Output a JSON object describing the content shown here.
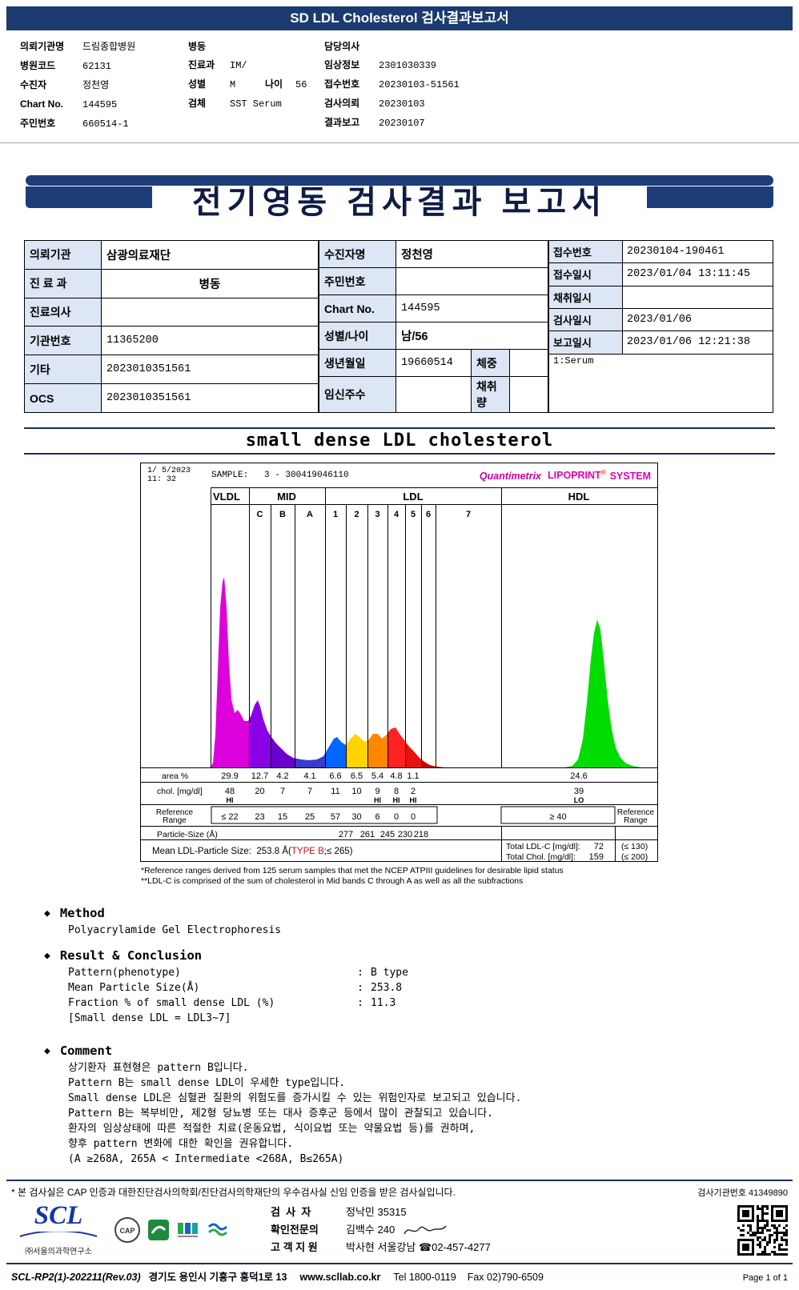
{
  "top": {
    "title": "SD LDL Cholesterol 검사결과보고서"
  },
  "patient": {
    "col1": [
      {
        "label": "의뢰기관명",
        "value": "드림종합병원"
      },
      {
        "label": "병원코드",
        "value": "62131"
      },
      {
        "label": "수진자",
        "value": "정천영"
      },
      {
        "label": "Chart No.",
        "value": "144595"
      },
      {
        "label": "주민번호",
        "value": "660514-1"
      }
    ],
    "col2": [
      {
        "label": "병동",
        "value": ""
      },
      {
        "label": "진료과",
        "value": "IM/"
      },
      {
        "label": "성별",
        "value": "M",
        "label2": "나이",
        "value2": "56"
      },
      {
        "label": "검체",
        "value": "SST Serum"
      }
    ],
    "col3": [
      {
        "label": "담당의사",
        "value": ""
      },
      {
        "label": "임상정보",
        "value": "2301030339"
      },
      {
        "label": "접수번호",
        "value": "20230103-51561"
      },
      {
        "label": "검사의뢰",
        "value": "20230103"
      },
      {
        "label": "결과보고",
        "value": "20230107"
      }
    ]
  },
  "banner": {
    "title": "전기영동 검사결과 보고서"
  },
  "info": {
    "rows_left": [
      {
        "label": "의뢰기관",
        "value": "삼광의료재단"
      },
      {
        "label": "진 료 과",
        "value": "병동"
      },
      {
        "label": "진료의사",
        "value": ""
      },
      {
        "label": "기관번호",
        "value": "11365200"
      },
      {
        "label": "기타",
        "value": "2023010351561"
      },
      {
        "label": "OCS",
        "value": "2023010351561"
      }
    ],
    "rows_mid": [
      {
        "label": "수진자명",
        "value": "정천영"
      },
      {
        "label": "주민번호",
        "value": ""
      },
      {
        "label": "Chart No.",
        "value": "144595"
      },
      {
        "label": "성별/나이",
        "value": "남/56"
      },
      {
        "label": "생년월일",
        "value": "19660514",
        "label2": "체중",
        "value2": ""
      },
      {
        "label": "임신주수",
        "value": "",
        "label2": "채취량",
        "value2": ""
      }
    ],
    "rows_right": [
      {
        "label": "접수번호",
        "value": "20230104-190461"
      },
      {
        "label": "접수일시",
        "value": "2023/01/04 13:11:45"
      },
      {
        "label": "채취일시",
        "value": ""
      },
      {
        "label": "검사일시",
        "value": "2023/01/06"
      },
      {
        "label": "보고일시",
        "value": "2023/01/06 12:21:38"
      }
    ],
    "serum_note": "1:Serum"
  },
  "section_title": "small dense LDL cholesterol",
  "chart_data": {
    "type": "area",
    "date": "1/ 5/2023",
    "time": "11: 32",
    "sample": "SAMPLE:   3 - 300419046110",
    "brand1": "Quantimetrix",
    "brand2": "LIPOPRINT",
    "brand_reg": "®",
    "brand3": "SYSTEM",
    "groups": [
      "VLDL",
      "MID",
      "LDL",
      "HDL"
    ],
    "bands": [
      "VLDL",
      "C",
      "B",
      "A",
      "1",
      "2",
      "3",
      "4",
      "5",
      "6",
      "7",
      "HDL"
    ],
    "band_colors": [
      "#dd00dd",
      "#8a00e6",
      "#6a00cc",
      "#3a3acc",
      "#0066ff",
      "#ffd400",
      "#ff8800",
      "#ff2222",
      "#e81010",
      "#cc0000",
      "#aa0000",
      "#00dd00"
    ],
    "area_pct": [
      29.9,
      12.7,
      4.2,
      4.1,
      6.6,
      6.5,
      5.4,
      4.8,
      1.1
    ],
    "area_pct_hdl": 24.6,
    "chol_mg_dl": [
      48,
      20,
      7,
      7,
      11,
      10,
      9,
      8,
      2
    ],
    "chol_flags": [
      "HI",
      "",
      "",
      "",
      "",
      "",
      "HI",
      "HI",
      "HI"
    ],
    "chol_hdl": 39,
    "chol_hdl_flag": "LO",
    "reference_range": [
      "≤ 22",
      "23",
      "15",
      "25",
      "57",
      "30",
      "6",
      "0",
      "0"
    ],
    "reference_hdl": "≥ 40",
    "particle_sizes": [
      277,
      261,
      245,
      230,
      218
    ],
    "row_labels": {
      "area": "area %",
      "chol": "chol. [mg/dl]",
      "reference": "Reference Range",
      "particle": "Particle-Size (Å)"
    },
    "mean_particle": {
      "label": "Mean LDL-Particle Size:",
      "size": "253.8 Å(",
      "type": "TYPE B",
      "suffix": ";≤ 265)"
    },
    "totals": [
      {
        "label": "Total LDL-C [mg/dl]:",
        "value": "72",
        "ref": "(≤ 130)"
      },
      {
        "label": "Total Chol. [mg/dl]:",
        "value": "159",
        "ref": "(≤ 200)"
      }
    ],
    "profile": [
      [
        87,
        0
      ],
      [
        90,
        6
      ],
      [
        93,
        40
      ],
      [
        96,
        120
      ],
      [
        99,
        200
      ],
      [
        102,
        232
      ],
      [
        104,
        238
      ],
      [
        107,
        200
      ],
      [
        110,
        130
      ],
      [
        113,
        85
      ],
      [
        117,
        68
      ],
      [
        121,
        72
      ],
      [
        125,
        66
      ],
      [
        129,
        58
      ],
      [
        134,
        58
      ],
      [
        138,
        66
      ],
      [
        142,
        78
      ],
      [
        146,
        84
      ],
      [
        149,
        76
      ],
      [
        153,
        60
      ],
      [
        158,
        46
      ],
      [
        163,
        38
      ],
      [
        169,
        30
      ],
      [
        175,
        24
      ],
      [
        182,
        17
      ],
      [
        190,
        12
      ],
      [
        200,
        10
      ],
      [
        210,
        9
      ],
      [
        220,
        10
      ],
      [
        228,
        14
      ],
      [
        235,
        26
      ],
      [
        241,
        36
      ],
      [
        245,
        38
      ],
      [
        250,
        32
      ],
      [
        256,
        28
      ],
      [
        262,
        36
      ],
      [
        268,
        42
      ],
      [
        273,
        38
      ],
      [
        279,
        32
      ],
      [
        284,
        34
      ],
      [
        290,
        42
      ],
      [
        296,
        42
      ],
      [
        301,
        36
      ],
      [
        306,
        40
      ],
      [
        312,
        48
      ],
      [
        318,
        50
      ],
      [
        323,
        42
      ],
      [
        329,
        34
      ],
      [
        335,
        26
      ],
      [
        341,
        20
      ],
      [
        347,
        13
      ],
      [
        354,
        7
      ],
      [
        361,
        3
      ],
      [
        369,
        1
      ],
      [
        380,
        0
      ],
      [
        450,
        0
      ],
      [
        530,
        0
      ],
      [
        539,
        2
      ],
      [
        546,
        10
      ],
      [
        552,
        35
      ],
      [
        557,
        80
      ],
      [
        562,
        135
      ],
      [
        566,
        168
      ],
      [
        570,
        185
      ],
      [
        574,
        172
      ],
      [
        578,
        135
      ],
      [
        583,
        85
      ],
      [
        588,
        48
      ],
      [
        593,
        25
      ],
      [
        599,
        12
      ],
      [
        606,
        5
      ],
      [
        614,
        2
      ],
      [
        624,
        0
      ],
      [
        644,
        0
      ]
    ]
  },
  "footnotes": [
    "*Reference ranges derived from 125 serum samples that met the NCEP ATPIII guidelines for desirable lipid status",
    "**LDL-C is comprised of the sum of cholesterol in Mid bands C through A as well as all the subfractions"
  ],
  "method": {
    "heading": "Method",
    "body": "Polyacrylamide Gel Electrophoresis"
  },
  "result": {
    "heading": "Result & Conclusion",
    "rows": [
      {
        "name": "Pattern(phenotype)",
        "value": "B type"
      },
      {
        "name": "Mean Particle Size(Å)",
        "value": "253.8"
      },
      {
        "name": "Fraction % of small dense LDL (%)",
        "value": "11.3"
      }
    ],
    "note": "[Small dense LDL = LDL3~7]"
  },
  "comment": {
    "heading": "Comment",
    "lines": [
      "상기환자 표현형은 pattern B입니다.",
      "Pattern B는 small dense LDL이 우세한 type입니다.",
      "Small dense LDL은 심혈관 질환의 위험도를 증가시킬 수 있는 위험인자로 보고되고 있습니다.",
      "Pattern B는 복부비만, 제2형 당뇨병 또는 대사 증후군 등에서 많이 관찰되고 있습니다.",
      "환자의 임상상태에 따른 적절한 치료(운동요법, 식이요법 또는 약물요법 등)를 권하며,",
      "향후 pattern 변화에 대한 확인을 권유합니다.",
      "(A ≥268A, 265A < Intermediate <268A, B≤265A)"
    ]
  },
  "footer": {
    "note": "* 본 검사실은 CAP 인증과 대한진단검사의학회/진단검사의학재단의 우수검사실 신임 인증을 받은 검사실입니다.",
    "lab_no": "검사기관번호 41349890",
    "logo": "SCL",
    "org": "㈜서울의과학연구소",
    "cap": "CAP",
    "staff": [
      {
        "label": "검  사  자",
        "value": "정낙민 35315"
      },
      {
        "label": "확인전문의",
        "value": "김백수 240"
      },
      {
        "label": "고 객 지 원",
        "value": "박사현 서울강남 ☎02-457-4277"
      }
    ],
    "doc_no": "SCL-RP2(1)-202211(Rev.03)",
    "address": "경기도 용인시 기흥구 흥덕1로 13",
    "web": "www.scllab.co.kr",
    "tel": "Tel 1800-0119",
    "fax": "Fax 02)790-6509",
    "page": "Page 1 of 1"
  }
}
